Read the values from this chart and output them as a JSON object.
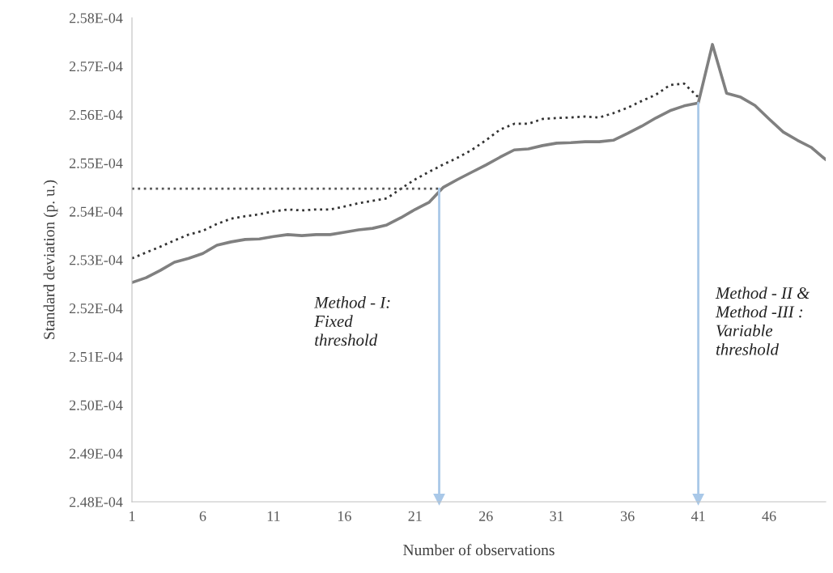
{
  "chart_data": {
    "type": "line",
    "xlabel": "Number of observations",
    "ylabel": "Standard deviation (p. u.)",
    "xlim": [
      1,
      50
    ],
    "xticks": [
      1,
      6,
      11,
      16,
      21,
      26,
      31,
      36,
      41,
      46
    ],
    "ylim": [
      0.000248,
      0.000258
    ],
    "yticks": [
      {
        "value": 0.000248,
        "label": "2.48E-04"
      },
      {
        "value": 0.000249,
        "label": "2.49E-04"
      },
      {
        "value": 0.00025,
        "label": "2.50E-04"
      },
      {
        "value": 0.000251,
        "label": "2.51E-04"
      },
      {
        "value": 0.000252,
        "label": "2.52E-04"
      },
      {
        "value": 0.000253,
        "label": "2.53E-04"
      },
      {
        "value": 0.000254,
        "label": "2.54E-04"
      },
      {
        "value": 0.000255,
        "label": "2.55E-04"
      },
      {
        "value": 0.000256,
        "label": "2.56E-04"
      },
      {
        "value": 0.000257,
        "label": "2.57E-04"
      },
      {
        "value": 0.000258,
        "label": "2.58E-04"
      }
    ],
    "grid": false,
    "legend": false,
    "series": [
      {
        "type": "line",
        "line_style": "solid",
        "color": "#808080",
        "x": [
          1,
          2,
          3,
          4,
          5,
          6,
          7,
          8,
          9,
          10,
          11,
          12,
          13,
          14,
          15,
          16,
          17,
          18,
          19,
          20,
          21,
          22,
          23,
          24,
          25,
          26,
          27,
          28,
          29,
          30,
          31,
          32,
          33,
          34,
          35,
          36,
          37,
          38,
          39,
          40,
          41,
          42,
          43,
          44,
          45,
          46,
          47,
          48,
          49,
          50
        ],
        "values": [
          0.00025253,
          0.00025263,
          0.00025278,
          0.00025295,
          0.00025303,
          0.00025313,
          0.0002533,
          0.00025337,
          0.00025342,
          0.00025343,
          0.00025348,
          0.00025352,
          0.0002535,
          0.00025352,
          0.00025352,
          0.00025357,
          0.00025362,
          0.00025365,
          0.00025372,
          0.00025387,
          0.00025404,
          0.00025419,
          0.0002545,
          0.00025466,
          0.00025481,
          0.00025496,
          0.00025512,
          0.00025527,
          0.00025529,
          0.00025536,
          0.00025541,
          0.00025542,
          0.00025544,
          0.00025544,
          0.00025547,
          0.00025561,
          0.00025576,
          0.00025593,
          0.00025608,
          0.00025618,
          0.00025624,
          0.00025745,
          0.00025644,
          0.00025636,
          0.00025619,
          0.00025591,
          0.00025564,
          0.00025547,
          0.00025532,
          0.00025507
        ]
      },
      {
        "type": "line",
        "line_style": "dotted",
        "color": "#333333",
        "x": [
          1,
          2,
          3,
          4,
          5,
          6,
          7,
          8,
          9,
          10,
          11,
          12,
          13,
          14,
          15,
          16,
          17,
          18,
          19,
          20,
          21,
          22,
          23,
          24,
          25,
          26,
          27,
          28,
          29,
          30,
          31,
          32,
          33,
          34,
          35,
          36,
          37,
          38,
          39,
          40,
          41
        ],
        "values": [
          0.00025303,
          0.00025315,
          0.00025327,
          0.0002534,
          0.00025352,
          0.0002536,
          0.00025374,
          0.00025385,
          0.0002539,
          0.00025394,
          0.000254,
          0.00025404,
          0.00025402,
          0.00025404,
          0.00025404,
          0.0002541,
          0.00025417,
          0.00025422,
          0.00025427,
          0.00025447,
          0.00025466,
          0.00025482,
          0.00025497,
          0.00025511,
          0.00025527,
          0.00025547,
          0.00025569,
          0.00025581,
          0.00025581,
          0.00025591,
          0.00025593,
          0.00025594,
          0.00025596,
          0.00025594,
          0.00025603,
          0.00025614,
          0.00025628,
          0.00025641,
          0.00025661,
          0.00025664,
          0.00025636
        ]
      },
      {
        "type": "line",
        "line_style": "dotted",
        "color": "#555555",
        "x": [
          1,
          22.7
        ],
        "values": [
          0.00025447,
          0.00025447
        ]
      },
      {
        "type": "line",
        "line_style": "solid",
        "color": "#a9c8e8",
        "marker": "triangle",
        "x": [
          22.7,
          22.7
        ],
        "values": [
          0.00025447,
          0.00024805
        ]
      },
      {
        "type": "line",
        "line_style": "solid",
        "color": "#a9c8e8",
        "marker": "triangle",
        "x": [
          41,
          41
        ],
        "values": [
          0.00025624,
          0.00024805
        ]
      }
    ],
    "annotations": [
      "Method - I:\nFixed\nthreshold",
      "Method - II &\nMethod -III :\nVariable\nthreshold"
    ]
  }
}
